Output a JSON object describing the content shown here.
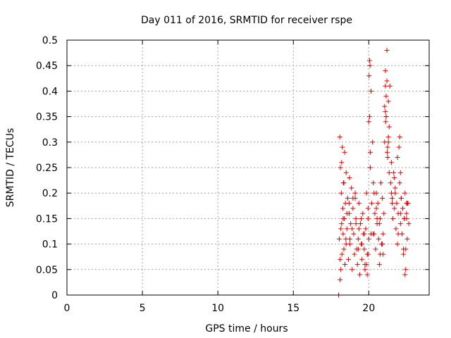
{
  "chart_data": {
    "type": "scatter",
    "title": "Day 011 of 2016, SRMTID for receiver rspe",
    "xlabel": "GPS time / hours",
    "ylabel": "SRMTID / TECUs",
    "xlim": [
      0,
      24
    ],
    "ylim": [
      0,
      0.5
    ],
    "xticks": [
      0,
      5,
      10,
      15,
      20
    ],
    "xtick_labels": [
      "0",
      "5",
      "10",
      "15",
      "20"
    ],
    "yticks": [
      0,
      0.05,
      0.1,
      0.15,
      0.2,
      0.25,
      0.3,
      0.35,
      0.4,
      0.45,
      0.5
    ],
    "ytick_labels": [
      "0",
      "0.05",
      "0.1",
      "0.15",
      "0.2",
      "0.25",
      "0.3",
      "0.35",
      "0.4",
      "0.45",
      "0.5"
    ],
    "grid": true,
    "marker": "+",
    "colors": {
      "series": "#e00000",
      "axis": "#000000",
      "grid": "#a0a0a0"
    },
    "series": [
      {
        "name": "SRMTID",
        "x": [
          18.0,
          18.05,
          18.08,
          18.1,
          18.12,
          18.15,
          18.18,
          18.2,
          18.22,
          18.25,
          18.28,
          18.3,
          18.32,
          18.35,
          18.38,
          18.4,
          18.42,
          18.45,
          18.48,
          18.5,
          18.55,
          18.6,
          18.65,
          18.7,
          18.72,
          18.75,
          18.8,
          18.85,
          18.9,
          18.95,
          19.0,
          19.05,
          19.1,
          19.15,
          19.2,
          19.25,
          19.3,
          19.35,
          19.4,
          19.45,
          19.5,
          19.55,
          19.6,
          19.65,
          19.7,
          19.75,
          19.8,
          19.85,
          19.9,
          19.95,
          20.0,
          20.05,
          20.1,
          20.15,
          20.2,
          20.25,
          20.3,
          20.35,
          20.4,
          20.45,
          20.5,
          20.55,
          20.6,
          20.65,
          20.7,
          20.75,
          20.8,
          20.85,
          20.9,
          20.95,
          21.0,
          21.05,
          21.1,
          21.15,
          21.2,
          21.25,
          21.3,
          21.35,
          21.4,
          21.45,
          21.5,
          21.55,
          21.6,
          21.65,
          21.7,
          21.75,
          21.8,
          21.85,
          21.9,
          21.95,
          22.0,
          22.05,
          22.1,
          22.15,
          22.2,
          22.25,
          22.3,
          22.35,
          22.4,
          22.45,
          22.5,
          22.55,
          22.6,
          22.65,
          18.1,
          18.2,
          18.3,
          18.5,
          18.7,
          18.9,
          19.1,
          19.3,
          19.5,
          19.7,
          19.9,
          20.1,
          20.3,
          20.5,
          20.7,
          20.9,
          21.1,
          21.3,
          21.5,
          21.7,
          21.9,
          22.1,
          22.3,
          22.5,
          18.15,
          18.35,
          18.55,
          18.75,
          18.95,
          19.15,
          19.35,
          19.55,
          19.75,
          19.95,
          20.15,
          20.35,
          20.55,
          20.75,
          20.95,
          21.15,
          21.35,
          21.55,
          21.75,
          21.95,
          22.15,
          22.35,
          22.55,
          20.0,
          20.05,
          20.02,
          20.08,
          21.05,
          21.1,
          21.15,
          21.2,
          21.25,
          21.3,
          21.12,
          21.22,
          19.85,
          19.95,
          22.05,
          22.1,
          22.4,
          22.45,
          22.5
        ],
        "y": [
          0.0,
          0.11,
          0.31,
          0.03,
          0.25,
          0.05,
          0.2,
          0.14,
          0.08,
          0.29,
          0.17,
          0.12,
          0.22,
          0.09,
          0.15,
          0.28,
          0.06,
          0.18,
          0.11,
          0.24,
          0.13,
          0.19,
          0.07,
          0.16,
          0.23,
          0.1,
          0.14,
          0.21,
          0.05,
          0.17,
          0.12,
          0.08,
          0.19,
          0.15,
          0.09,
          0.06,
          0.11,
          0.18,
          0.04,
          0.14,
          0.1,
          0.07,
          0.16,
          0.12,
          0.09,
          0.05,
          0.13,
          0.2,
          0.08,
          0.15,
          0.34,
          0.46,
          0.25,
          0.4,
          0.18,
          0.3,
          0.22,
          0.12,
          0.16,
          0.09,
          0.2,
          0.14,
          0.18,
          0.11,
          0.06,
          0.15,
          0.22,
          0.1,
          0.19,
          0.08,
          0.16,
          0.3,
          0.44,
          0.35,
          0.48,
          0.27,
          0.38,
          0.33,
          0.41,
          0.22,
          0.26,
          0.19,
          0.15,
          0.24,
          0.17,
          0.21,
          0.13,
          0.18,
          0.1,
          0.16,
          0.29,
          0.22,
          0.14,
          0.19,
          0.12,
          0.17,
          0.09,
          0.15,
          0.2,
          0.05,
          0.16,
          0.11,
          0.18,
          0.14,
          0.07,
          0.26,
          0.15,
          0.1,
          0.18,
          0.13,
          0.2,
          0.09,
          0.15,
          0.12,
          0.04,
          0.28,
          0.12,
          0.17,
          0.14,
          0.1,
          0.41,
          0.3,
          0.2,
          0.23,
          0.27,
          0.16,
          0.08,
          0.18,
          0.13,
          0.22,
          0.16,
          0.11,
          0.19,
          0.14,
          0.13,
          0.1,
          0.06,
          0.17,
          0.12,
          0.2,
          0.15,
          0.08,
          0.12,
          0.35,
          0.24,
          0.18,
          0.2,
          0.12,
          0.19,
          0.15,
          0.18,
          0.11,
          0.35,
          0.43,
          0.45,
          0.37,
          0.36,
          0.39,
          0.42,
          0.29,
          0.31,
          0.34,
          0.28,
          0.06,
          0.08,
          0.31,
          0.24,
          0.04,
          0.09,
          0.15
        ]
      }
    ]
  }
}
